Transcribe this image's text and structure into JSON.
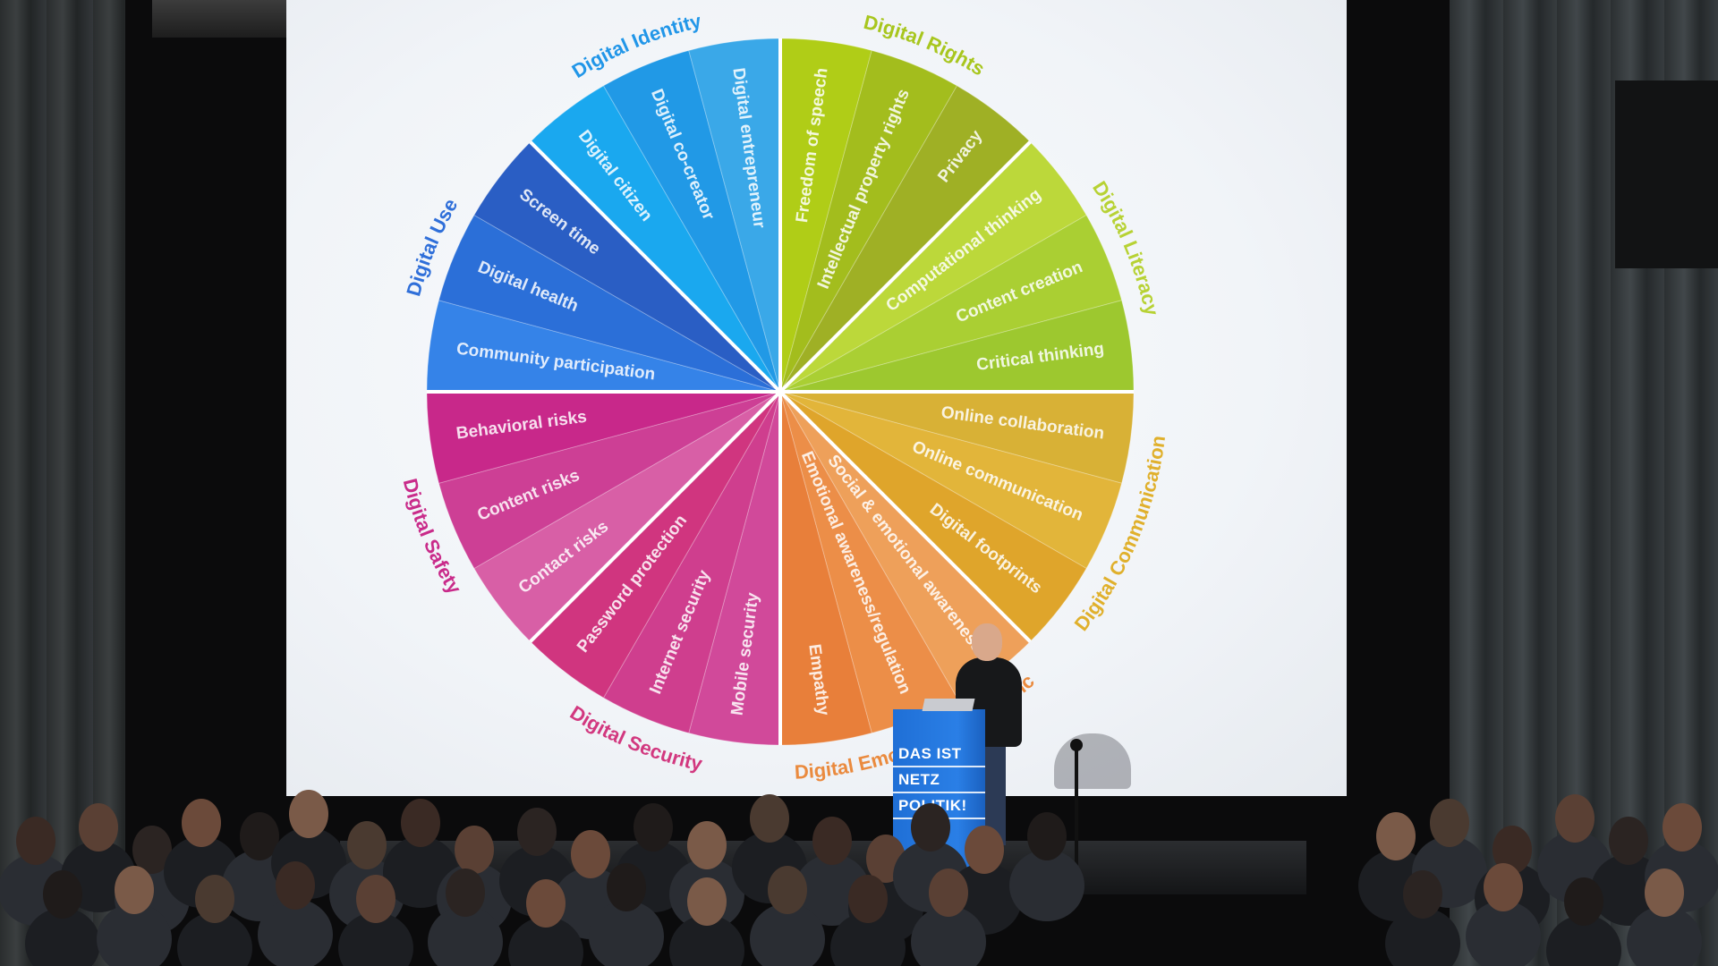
{
  "wheel": {
    "categories": [
      {
        "label": "Digital Identity",
        "color": "#2196e8"
      },
      {
        "label": "Digital Rights",
        "color": "#a8c61e"
      },
      {
        "label": "Digital Literacy",
        "color": "#b7d234"
      },
      {
        "label": "Digital Communication",
        "color": "#e0b02c"
      },
      {
        "label": "Digital Emotional Intelligence",
        "color": "#ea8a3e"
      },
      {
        "label": "Digital Security",
        "color": "#d2387f"
      },
      {
        "label": "Digital Safety",
        "color": "#c92b8a"
      },
      {
        "label": "Digital Use",
        "color": "#2f6fd9"
      }
    ],
    "slices": [
      {
        "label": "Digital citizen",
        "category": 0,
        "color": "#1aa8ef"
      },
      {
        "label": "Digital co-creator",
        "category": 0,
        "color": "#2199e6"
      },
      {
        "label": "Digital entrepreneur",
        "category": 0,
        "color": "#3aa8e8"
      },
      {
        "label": "Freedom of speech",
        "category": 1,
        "color": "#b0cd17"
      },
      {
        "label": "Intellectual property rights",
        "category": 1,
        "color": "#a3bd1d"
      },
      {
        "label": "Privacy",
        "category": 1,
        "color": "#9fb025"
      },
      {
        "label": "Computational thinking",
        "category": 2,
        "color": "#bcd83a"
      },
      {
        "label": "Content creation",
        "category": 2,
        "color": "#aacf33"
      },
      {
        "label": "Critical thinking",
        "category": 2,
        "color": "#9dc82f"
      },
      {
        "label": "Online collaboration",
        "category": 3,
        "color": "#d8b136"
      },
      {
        "label": "Online communication",
        "category": 3,
        "color": "#e2b53a"
      },
      {
        "label": "Digital footprints",
        "category": 3,
        "color": "#dfa52b"
      },
      {
        "label": "Social & emotional awareness",
        "category": 4,
        "color": "#eea05a"
      },
      {
        "label": "Emotional awareness/regulation",
        "category": 4,
        "color": "#ec8e48"
      },
      {
        "label": "Empathy",
        "category": 4,
        "color": "#e87f3a"
      },
      {
        "label": "Mobile security",
        "category": 5,
        "color": "#d1499a"
      },
      {
        "label": "Internet security",
        "category": 5,
        "color": "#cf3e8e"
      },
      {
        "label": "Password protection",
        "category": 5,
        "color": "#d0357f"
      },
      {
        "label": "Contact risks",
        "category": 6,
        "color": "#d85fa6"
      },
      {
        "label": "Content risks",
        "category": 6,
        "color": "#cd3f95"
      },
      {
        "label": "Behavioral risks",
        "category": 6,
        "color": "#c8288a"
      },
      {
        "label": "Community participation",
        "category": 7,
        "color": "#3583e8"
      },
      {
        "label": "Digital health",
        "category": 7,
        "color": "#2b6fd8"
      },
      {
        "label": "Screen time",
        "category": 7,
        "color": "#2a5ec4"
      }
    ]
  },
  "podium": {
    "line1": "DAS IST",
    "line2": "NETZ",
    "line3": "POLITIK!",
    "color": "#2a7fe6"
  }
}
